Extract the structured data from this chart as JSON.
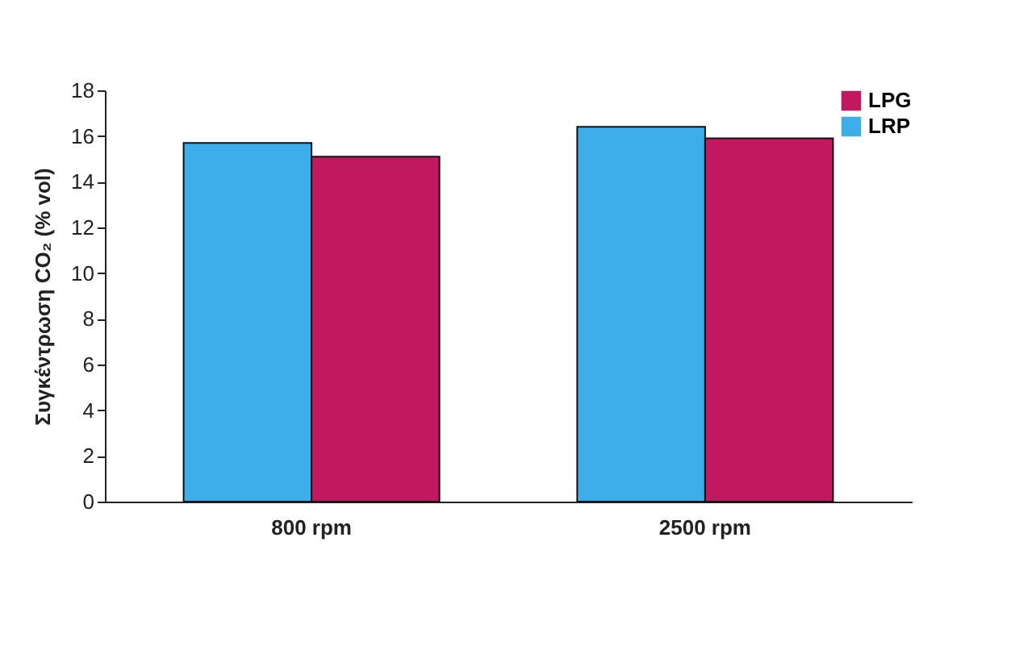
{
  "chart_data": {
    "type": "bar",
    "categories": [
      "800 rpm",
      "2500 rpm"
    ],
    "ylabel": "Συγκέντρωση CO₂ (% vol)",
    "ylim": [
      0,
      18
    ],
    "yticks": [
      0,
      2,
      4,
      6,
      8,
      10,
      12,
      14,
      16,
      18
    ],
    "grid": false,
    "legend": "top right",
    "series": [
      {
        "name": "LRP",
        "color": "#3eaeea",
        "values": [
          15.7,
          16.4
        ]
      },
      {
        "name": "LPG",
        "color": "#c2185f",
        "values": [
          15.1,
          15.9
        ]
      }
    ]
  }
}
